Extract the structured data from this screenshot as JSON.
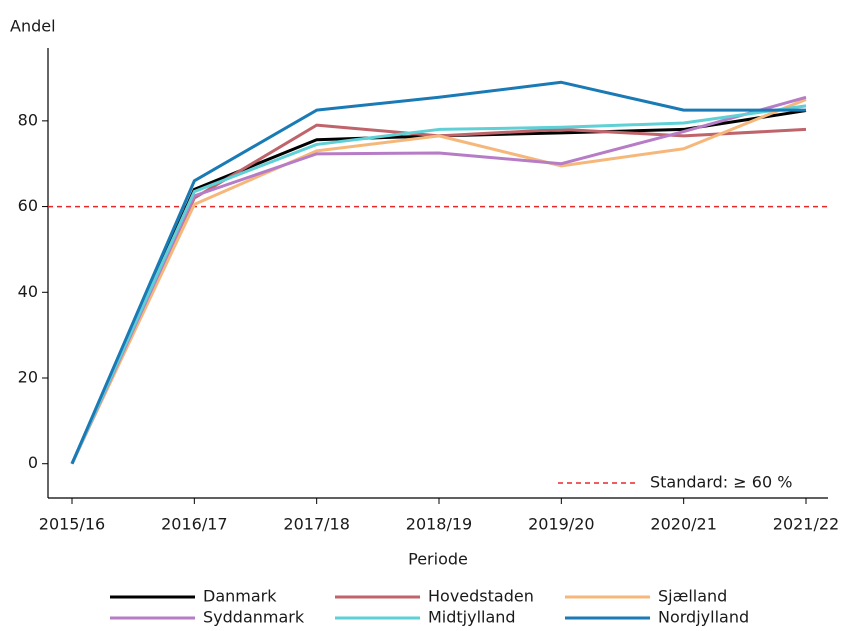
{
  "chart_data": {
    "type": "line",
    "ylabel": "Andel",
    "xlabel": "Periode",
    "categories": [
      "2015/16",
      "2016/17",
      "2017/18",
      "2018/19",
      "2019/20",
      "2020/21",
      "2021/22"
    ],
    "series": [
      {
        "name": "Danmark",
        "color": "#000000",
        "values": [
          0,
          64,
          75.6,
          76.5,
          77.2,
          78,
          82.4
        ]
      },
      {
        "name": "Hovedstaden",
        "color": "#c0646b",
        "values": [
          0,
          62,
          79,
          76.5,
          78,
          76.5,
          78
        ]
      },
      {
        "name": "Sjælland",
        "color": "#f5b77a",
        "values": [
          0,
          60.5,
          73,
          76.5,
          69.5,
          73.5,
          85
        ]
      },
      {
        "name": "Syddanmark",
        "color": "#b77cc6",
        "values": [
          0,
          62.5,
          72.3,
          72.5,
          70,
          77.5,
          85.5
        ]
      },
      {
        "name": "Midtjylland",
        "color": "#5fd0d6",
        "values": [
          0,
          63.5,
          74.5,
          78,
          78.5,
          79.5,
          83.5
        ]
      },
      {
        "name": "Nordjylland",
        "color": "#1a7ab5",
        "values": [
          0,
          66,
          82.5,
          85.5,
          89,
          82.5,
          82.5
        ]
      }
    ],
    "reference": {
      "value": 60,
      "label": "Standard: ≥ 60 %",
      "color": "#e8282b"
    },
    "ylim": [
      -8,
      97
    ],
    "yticks": [
      0,
      20,
      40,
      60,
      80
    ]
  }
}
